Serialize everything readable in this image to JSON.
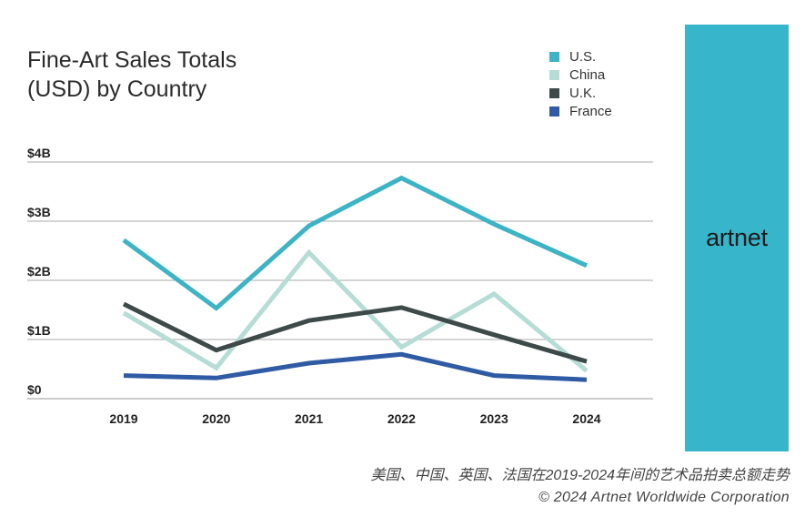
{
  "chart_data": {
    "type": "line",
    "title_line1": "Fine-Art Sales Totals",
    "title_line2": "(USD) by Country",
    "categories": [
      "2019",
      "2020",
      "2021",
      "2022",
      "2023",
      "2024"
    ],
    "ylim": [
      0,
      4
    ],
    "yticks": [
      {
        "value": 4,
        "label": "$4B"
      },
      {
        "value": 3,
        "label": "$3B"
      },
      {
        "value": 2,
        "label": "$2B"
      },
      {
        "value": 1,
        "label": "$1B"
      },
      {
        "value": 0,
        "label": "$0"
      }
    ],
    "grid": true,
    "legend_position": "top-right",
    "series": [
      {
        "name": "U.S.",
        "color": "#3db3c6",
        "values": [
          2.68,
          1.53,
          2.92,
          3.73,
          2.95,
          2.25
        ]
      },
      {
        "name": "China",
        "color": "#b5ddd6",
        "values": [
          1.45,
          0.52,
          2.47,
          0.87,
          1.77,
          0.47
        ]
      },
      {
        "name": "U.K.",
        "color": "#3d4a49",
        "values": [
          1.6,
          0.82,
          1.32,
          1.54,
          1.08,
          0.63
        ]
      },
      {
        "name": "France",
        "color": "#2f5ba4",
        "values": [
          0.39,
          0.35,
          0.6,
          0.75,
          0.39,
          0.32
        ]
      }
    ]
  },
  "brand": {
    "logo_text": "artnet"
  },
  "caption": {
    "line1": "美国、中国、英国、法国在2019-2024年间的艺术品拍卖总额走势",
    "line2": "© 2024 Artnet Worldwide Corporation"
  }
}
